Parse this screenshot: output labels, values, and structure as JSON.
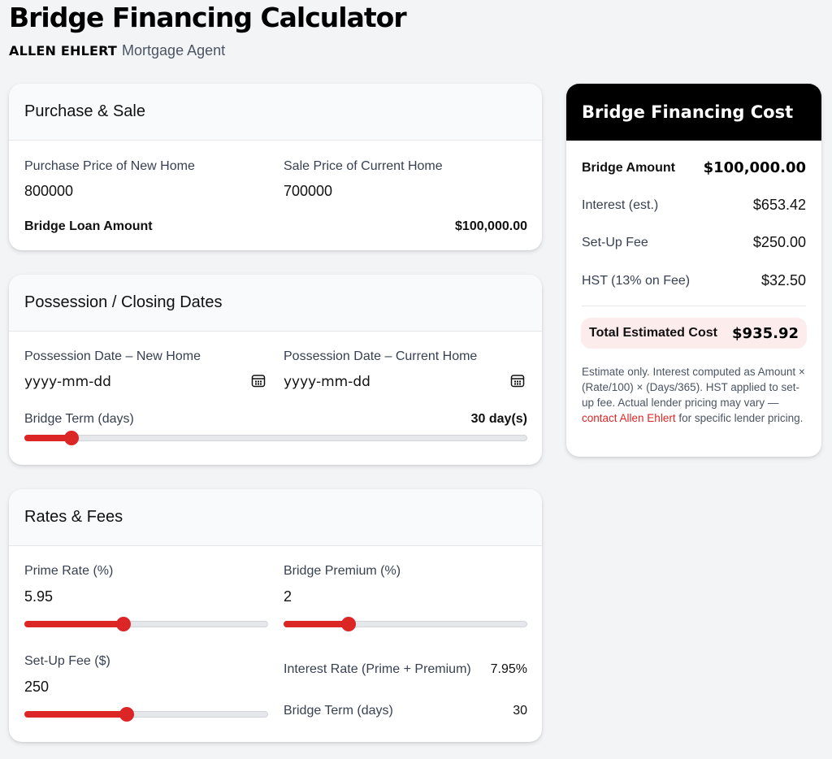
{
  "header": {
    "title": "Bridge Financing Calculator",
    "agent_name": "ALLEN EHLERT",
    "agent_role": "Mortgage Agent"
  },
  "purchase_sale": {
    "heading": "Purchase & Sale",
    "purchase_price_label": "Purchase Price of New Home",
    "purchase_price_value": "800000",
    "sale_price_label": "Sale Price of Current Home",
    "sale_price_value": "700000",
    "bridge_loan_label": "Bridge Loan Amount",
    "bridge_loan_value": "$100,000.00"
  },
  "dates": {
    "heading": "Possession / Closing Dates",
    "new_home_label": "Possession Date – New Home",
    "new_home_placeholder": "yyyy-mm-dd",
    "current_home_label": "Possession Date – Current Home",
    "current_home_placeholder": "yyyy-mm-dd",
    "term_label": "Bridge Term (days)",
    "term_value": "30 day(s)",
    "term_slider_fraction": 0.093
  },
  "rates": {
    "heading": "Rates & Fees",
    "prime_label": "Prime Rate (%)",
    "prime_value": "5.95",
    "prime_slider_fraction": 0.405,
    "premium_label": "Bridge Premium (%)",
    "premium_value": "2",
    "premium_slider_fraction": 0.267,
    "setup_label": "Set-Up Fee ($)",
    "setup_value": "250",
    "setup_slider_fraction": 0.42,
    "interest_rate_label": "Interest Rate (Prime + Premium)",
    "interest_rate_value": "7.95%",
    "term_label": "Bridge Term (days)",
    "term_value": "30"
  },
  "cost": {
    "heading": "Bridge Financing Cost",
    "bridge_amount_label": "Bridge Amount",
    "bridge_amount_value": "$100,000.00",
    "interest_label": "Interest (est.)",
    "interest_value": "$653.42",
    "setup_fee_label": "Set-Up Fee",
    "setup_fee_value": "$250.00",
    "hst_label": "HST (13% on Fee)",
    "hst_value": "$32.50",
    "total_label": "Total Estimated Cost",
    "total_value": "$935.92",
    "note_text": "Estimate only. Interest computed as Amount × (Rate/100) × (Days/365). HST applied to set-up fee. Actual lender pricing may vary — ",
    "note_link": "contact Allen Ehlert",
    "note_tail": " for specific lender pricing."
  },
  "colors": {
    "accent": "#dc2626",
    "header_dark": "#000000",
    "total_bg": "#fdecec"
  },
  "icons": {
    "date_picker": "calendar-icon"
  }
}
